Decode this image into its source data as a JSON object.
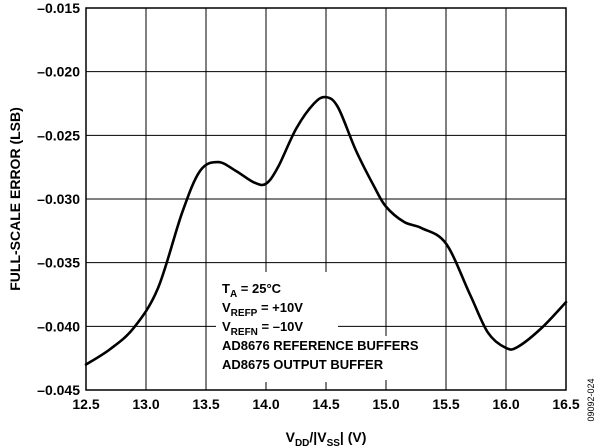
{
  "chart_data": {
    "type": "line",
    "xlabel": {
      "main": "V",
      "sub1": "DD",
      "mid": "/|V",
      "sub2": "SS",
      "end": "| (V)"
    },
    "ylabel": "FULL-SCALE ERROR (LSB)",
    "xlim": [
      12.5,
      16.5
    ],
    "ylim": [
      -0.045,
      -0.015
    ],
    "x_ticks": [
      12.5,
      13.0,
      13.5,
      14.0,
      14.5,
      15.0,
      15.5,
      16.0,
      16.5
    ],
    "y_ticks": [
      -0.015,
      -0.02,
      -0.025,
      -0.03,
      -0.035,
      -0.04,
      -0.045
    ],
    "x_tick_labels": [
      "12.5",
      "13.0",
      "13.5",
      "14.0",
      "14.5",
      "15.0",
      "15.5",
      "16.0",
      "16.5"
    ],
    "y_tick_labels": [
      "–0.015",
      "–0.020",
      "–0.025",
      "–0.030",
      "–0.035",
      "–0.040",
      "–0.045"
    ],
    "grid": true,
    "series": [
      {
        "x": [
          12.5,
          12.7,
          12.9,
          13.1,
          13.3,
          13.45,
          13.6,
          13.75,
          13.9,
          14.0,
          14.1,
          14.25,
          14.4,
          14.5,
          14.6,
          14.75,
          14.9,
          15.0,
          15.15,
          15.3,
          15.5,
          15.7,
          15.85,
          16.0,
          16.1,
          16.3,
          16.5
        ],
        "y": [
          -0.043,
          -0.0418,
          -0.0401,
          -0.037,
          -0.0311,
          -0.0278,
          -0.0271,
          -0.0278,
          -0.0287,
          -0.0288,
          -0.0275,
          -0.0245,
          -0.0225,
          -0.022,
          -0.0228,
          -0.0262,
          -0.029,
          -0.0306,
          -0.0318,
          -0.0323,
          -0.0335,
          -0.0375,
          -0.0405,
          -0.0417,
          -0.0416,
          -0.0401,
          -0.0381
        ]
      }
    ],
    "annotations": [
      {
        "main": "T",
        "sub": "A",
        "rest": " = 25°C"
      },
      {
        "main": "V",
        "sub": "REFP",
        "rest": " = +10V"
      },
      {
        "main": "V",
        "sub": "REFN",
        "rest": " = –10V"
      },
      {
        "main": "AD8676 REFERENCE BUFFERS",
        "sub": "",
        "rest": ""
      },
      {
        "main": "AD8675 OUTPUT BUFFER",
        "sub": "",
        "rest": ""
      }
    ],
    "figure_id": "09092-024"
  }
}
